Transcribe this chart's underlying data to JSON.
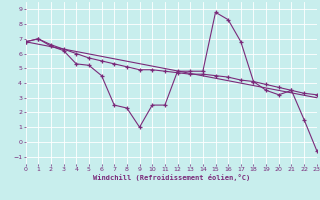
{
  "xlabel": "Windchill (Refroidissement éolien,°C)",
  "background_color": "#c8eeed",
  "grid_color": "#ffffff",
  "line_color": "#7a2a7a",
  "xlim": [
    0,
    23
  ],
  "ylim": [
    -1.5,
    9.5
  ],
  "xticks": [
    0,
    1,
    2,
    3,
    4,
    5,
    6,
    7,
    8,
    9,
    10,
    11,
    12,
    13,
    14,
    15,
    16,
    17,
    18,
    19,
    20,
    21,
    22,
    23
  ],
  "yticks": [
    -1,
    0,
    1,
    2,
    3,
    4,
    5,
    6,
    7,
    8,
    9
  ],
  "line1_x": [
    0,
    1,
    2,
    3,
    4,
    5,
    6,
    7,
    8,
    9,
    10,
    11,
    12,
    13,
    14,
    15,
    16,
    17,
    18,
    19,
    20,
    21,
    22,
    23
  ],
  "line1_y": [
    6.8,
    7.0,
    6.5,
    6.2,
    5.3,
    5.2,
    4.5,
    2.5,
    2.3,
    1.0,
    2.5,
    2.5,
    4.8,
    4.8,
    4.8,
    8.8,
    8.3,
    6.8,
    4.1,
    3.5,
    3.2,
    3.5,
    1.5,
    -0.6
  ],
  "line2_x": [
    0,
    1,
    2,
    3,
    4,
    5,
    6,
    7,
    8,
    9,
    10,
    11,
    12,
    13,
    14,
    15,
    16,
    17,
    18,
    19,
    20,
    21,
    22,
    23
  ],
  "line2_y": [
    6.8,
    7.0,
    6.6,
    6.3,
    6.0,
    5.7,
    5.5,
    5.3,
    5.1,
    4.9,
    4.9,
    4.8,
    4.7,
    4.6,
    4.6,
    4.5,
    4.4,
    4.2,
    4.1,
    3.9,
    3.7,
    3.5,
    3.3,
    3.2
  ],
  "line3_x": [
    0,
    23
  ],
  "line3_y": [
    6.8,
    3.0
  ]
}
